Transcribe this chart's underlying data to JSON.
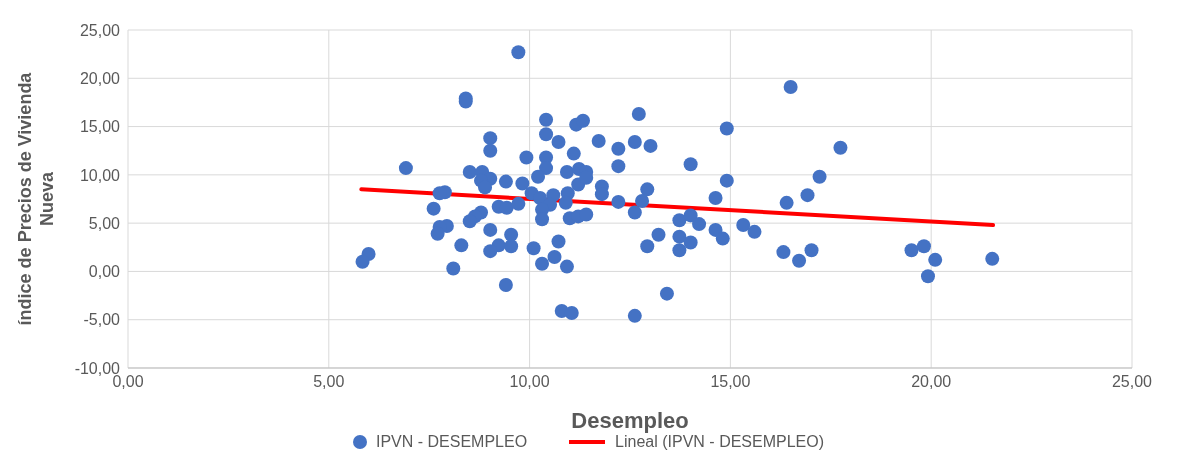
{
  "chart_data": {
    "type": "scatter",
    "xlabel": "Desempleo",
    "ylabel": "índice de Precios de Vivienda Nueva",
    "xlim": [
      0,
      25
    ],
    "ylim": [
      -10,
      25
    ],
    "xticks": [
      {
        "value": 0,
        "label": "0,00"
      },
      {
        "value": 5,
        "label": "5,00"
      },
      {
        "value": 10,
        "label": "10,00"
      },
      {
        "value": 15,
        "label": "15,00"
      },
      {
        "value": 20,
        "label": "20,00"
      },
      {
        "value": 25,
        "label": "25,00"
      }
    ],
    "yticks": [
      {
        "value": -10,
        "label": "-10,00"
      },
      {
        "value": -5,
        "label": "-5,00"
      },
      {
        "value": 0,
        "label": "0,00"
      },
      {
        "value": 5,
        "label": "5,00"
      },
      {
        "value": 10,
        "label": "10,00"
      },
      {
        "value": 15,
        "label": "15,00"
      },
      {
        "value": 20,
        "label": "20,00"
      },
      {
        "value": 25,
        "label": "25,00"
      }
    ],
    "grid": true,
    "legend": "bottom",
    "series": [
      {
        "name": "IPVN - DESEMPLEO",
        "color": "#4472c4",
        "marker": "circle",
        "x": [
          9.72,
          8.41,
          8.41,
          10.41,
          11.16,
          10.41,
          10.72,
          9.02,
          9.02,
          9.92,
          10.41,
          11.1,
          10.41,
          6.92,
          8.51,
          8.82,
          10.21,
          10.93,
          11.23,
          9.02,
          8.79,
          9.41,
          9.82,
          8.89,
          11.21,
          7.89,
          7.76,
          10.05,
          10.59,
          10.95,
          10.26,
          9.23,
          9.43,
          9.72,
          10.51,
          10.9,
          10.31,
          7.61,
          8.79,
          8.64,
          8.51,
          10.31,
          11.0,
          11.21,
          7.94,
          7.76,
          9.02,
          7.71,
          9.54,
          10.72,
          8.3,
          9.23,
          9.54,
          10.1,
          9.02,
          10.62,
          10.31,
          10.93,
          5.99,
          5.84,
          8.1,
          9.41,
          10.8,
          11.05,
          16.5,
          17.74,
          17.22,
          16.92,
          16.4,
          14.91,
          14.91,
          14.63,
          14.01,
          12.72,
          11.72,
          12.21,
          12.21,
          12.62,
          13.01,
          11.8,
          11.8,
          12.21,
          12.62,
          12.8,
          12.93,
          13.21,
          12.93,
          13.73,
          14.01,
          14.22,
          13.73,
          14.01,
          13.73,
          14.63,
          14.81,
          15.32,
          15.6,
          16.32,
          16.71,
          17.02,
          13.42,
          12.62,
          11.33,
          11.41,
          11.41,
          11.41,
          19.51,
          19.82,
          20.1,
          19.92,
          21.52
        ],
        "values": [
          22.7,
          17.9,
          17.6,
          15.7,
          15.2,
          14.2,
          13.4,
          13.8,
          12.5,
          11.8,
          11.8,
          12.2,
          10.7,
          10.7,
          10.3,
          10.3,
          9.8,
          10.3,
          10.6,
          9.6,
          9.4,
          9.3,
          9.1,
          8.7,
          9.0,
          8.2,
          8.1,
          8.1,
          7.9,
          8.1,
          7.6,
          6.7,
          6.6,
          7.0,
          6.9,
          7.1,
          6.4,
          6.5,
          6.1,
          5.7,
          5.2,
          5.4,
          5.5,
          5.7,
          4.7,
          4.6,
          4.3,
          3.9,
          3.8,
          3.1,
          2.7,
          2.7,
          2.6,
          2.4,
          2.1,
          1.5,
          0.8,
          0.5,
          1.8,
          1.0,
          0.3,
          -1.4,
          -4.1,
          -4.3,
          19.1,
          12.8,
          9.8,
          7.9,
          7.1,
          14.8,
          9.4,
          7.6,
          11.1,
          16.3,
          13.5,
          12.7,
          10.9,
          13.4,
          13.0,
          8.8,
          8.0,
          7.2,
          6.1,
          7.3,
          8.5,
          3.8,
          2.6,
          5.3,
          5.8,
          4.9,
          3.6,
          3.0,
          2.2,
          4.3,
          3.4,
          4.8,
          4.1,
          2.0,
          1.1,
          2.2,
          -2.3,
          -4.6,
          15.6,
          10.3,
          9.7,
          5.9,
          2.2,
          2.6,
          1.2,
          -0.5,
          1.3
        ]
      },
      {
        "name": "Lineal (IPVN - DESEMPLEO)",
        "type": "line",
        "color": "#ff0000",
        "line_style": "solid",
        "x": [
          5.81,
          21.54
        ],
        "values": [
          8.5,
          4.8
        ]
      }
    ]
  }
}
